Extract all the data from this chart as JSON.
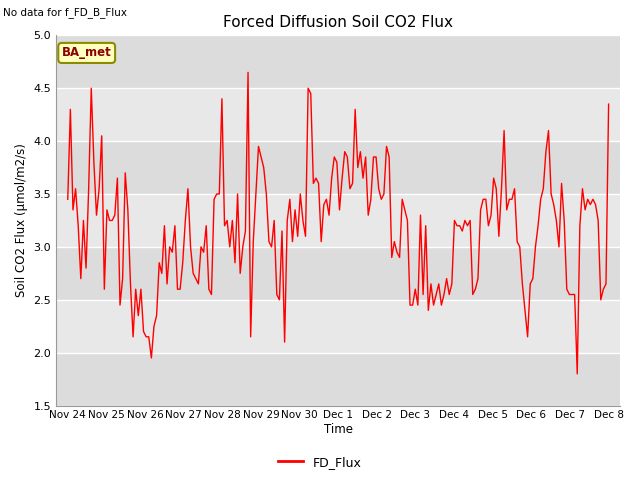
{
  "title": "Forced Diffusion Soil CO2 Flux",
  "subtitle": "No data for f_FD_B_Flux",
  "ylabel": "Soil CO2 Flux (μmol/m2/s)",
  "xlabel": "Time",
  "ylim": [
    1.5,
    5.0
  ],
  "yticks": [
    1.5,
    2.0,
    2.5,
    3.0,
    3.5,
    4.0,
    4.5,
    5.0
  ],
  "x_tick_labels": [
    "Nov 24",
    "Nov 25",
    "Nov 26",
    "Nov 27",
    "Nov 28",
    "Nov 29",
    "Nov 30",
    "Dec 1",
    "Dec 2",
    "Dec 3",
    "Dec 4",
    "Dec 5",
    "Dec 6",
    "Dec 7",
    "Dec 8"
  ],
  "line_color": "#FF0000",
  "line_label": "FD_Flux",
  "bg_color": "#E8E8E8",
  "ba_met_text": "BA_met",
  "ba_met_text_color": "#8B0000",
  "ba_met_box_facecolor": "#FFFFC0",
  "ba_met_box_edgecolor": "#8B8B00",
  "band_colors": [
    "#E8E8E8",
    "#D8D8D8"
  ],
  "y_values": [
    3.45,
    4.3,
    3.35,
    3.55,
    3.2,
    2.7,
    3.25,
    2.8,
    3.55,
    4.5,
    3.8,
    3.3,
    3.55,
    4.05,
    2.6,
    3.35,
    3.25,
    3.25,
    3.3,
    3.65,
    2.45,
    2.7,
    3.7,
    3.35,
    2.65,
    2.15,
    2.6,
    2.35,
    2.6,
    2.2,
    2.15,
    2.15,
    1.95,
    2.25,
    2.35,
    2.85,
    2.75,
    3.2,
    2.65,
    3.0,
    2.95,
    3.2,
    2.6,
    2.6,
    2.85,
    3.25,
    3.55,
    3.0,
    2.75,
    2.7,
    2.65,
    3.0,
    2.95,
    3.2,
    2.6,
    2.55,
    3.45,
    3.5,
    3.5,
    4.4,
    3.2,
    3.25,
    3.0,
    3.25,
    2.85,
    3.5,
    2.75,
    3.0,
    3.15,
    4.65,
    2.15,
    3.05,
    3.5,
    3.95,
    3.85,
    3.75,
    3.5,
    3.05,
    3.0,
    3.25,
    2.55,
    2.5,
    3.15,
    2.1,
    3.25,
    3.45,
    3.05,
    3.35,
    3.1,
    3.5,
    3.25,
    3.1,
    4.5,
    4.45,
    3.6,
    3.65,
    3.6,
    3.05,
    3.4,
    3.45,
    3.3,
    3.65,
    3.85,
    3.8,
    3.35,
    3.65,
    3.9,
    3.85,
    3.55,
    3.6,
    4.3,
    3.75,
    3.9,
    3.65,
    3.85,
    3.3,
    3.45,
    3.85,
    3.85,
    3.55,
    3.45,
    3.5,
    3.95,
    3.85,
    2.9,
    3.05,
    2.95,
    2.9,
    3.45,
    3.35,
    3.25,
    2.45,
    2.45,
    2.6,
    2.45,
    3.3,
    2.55,
    3.2,
    2.4,
    2.65,
    2.45,
    2.55,
    2.65,
    2.45,
    2.55,
    2.7,
    2.55,
    2.65,
    3.25,
    3.2,
    3.2,
    3.15,
    3.25,
    3.2,
    3.25,
    2.55,
    2.6,
    2.7,
    3.35,
    3.45,
    3.45,
    3.2,
    3.3,
    3.65,
    3.55,
    3.1,
    3.55,
    4.1,
    3.35,
    3.45,
    3.45,
    3.55,
    3.05,
    3.0,
    2.65,
    2.4,
    2.15,
    2.65,
    2.7,
    3.0,
    3.2,
    3.45,
    3.55,
    3.9,
    4.1,
    3.5,
    3.4,
    3.25,
    3.0,
    3.6,
    3.25,
    2.6,
    2.55,
    2.55,
    2.55,
    1.8,
    3.2,
    3.55,
    3.35,
    3.45,
    3.4,
    3.45,
    3.4,
    3.25,
    2.5,
    2.6,
    2.65,
    4.35
  ]
}
